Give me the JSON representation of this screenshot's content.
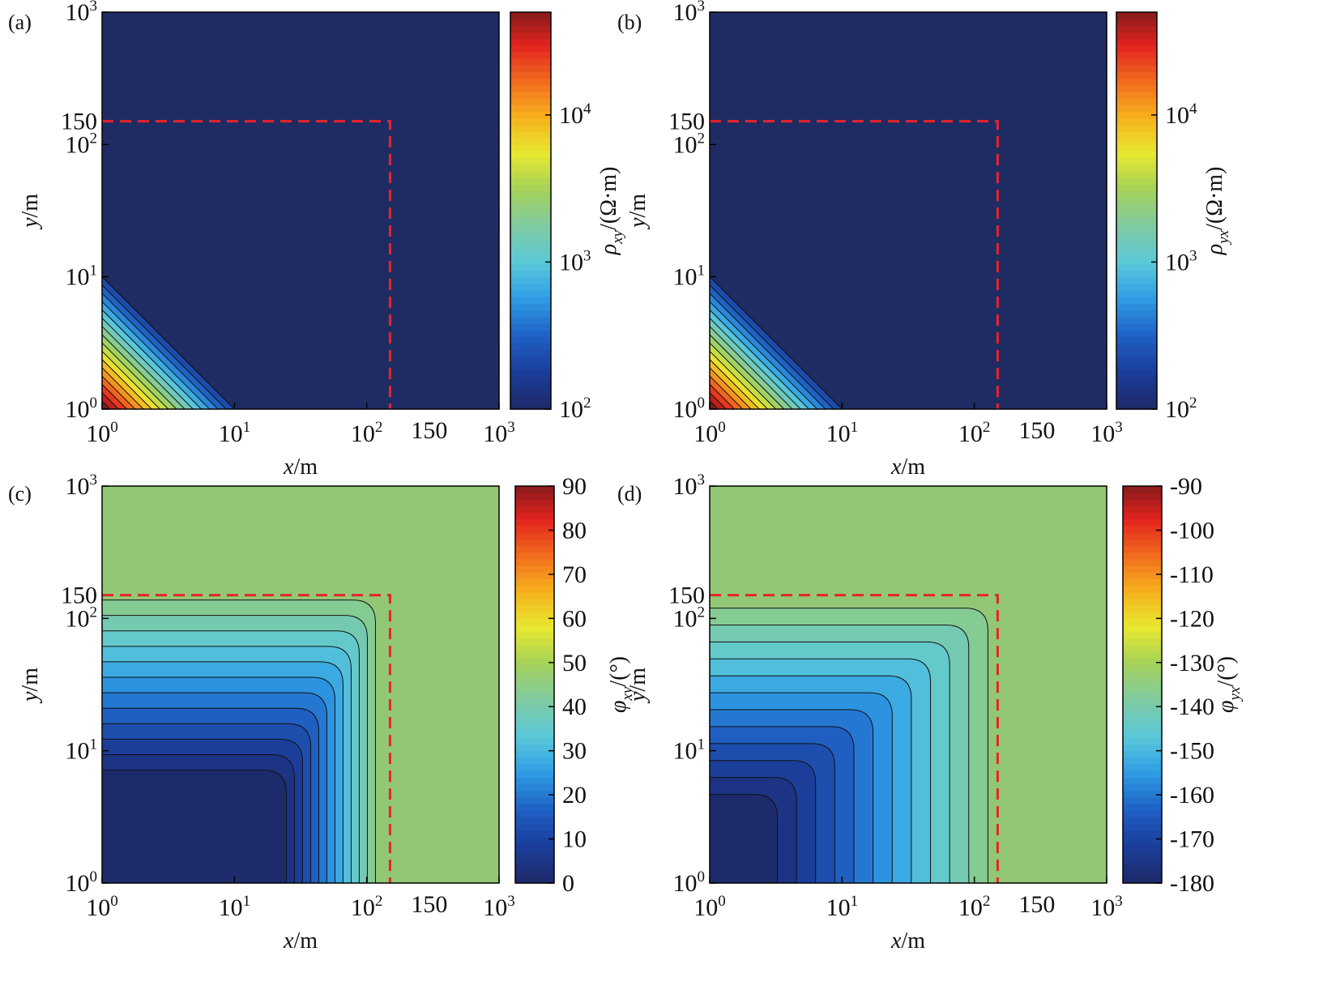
{
  "figure_type": "contour maps (log-log axes)",
  "shared": {
    "x_ticks": [
      "10",
      "10",
      "10",
      "10"
    ],
    "x_tick_exps": [
      "0",
      "1",
      "2",
      "3"
    ],
    "y_ticks": [
      "10",
      "10",
      "10",
      "10"
    ],
    "y_tick_exps": [
      "0",
      "1",
      "2",
      "3"
    ],
    "marker_label": "150",
    "xlabel_var": "x",
    "xlabel_unit": "/m",
    "ylabel_var": "y",
    "ylabel_unit": "/m"
  },
  "chart_data": [
    {
      "type": "heatmap",
      "panel": "(a)",
      "quantity": "apparent resistivity ρxy",
      "x_range": [
        1,
        1000
      ],
      "y_range": [
        1,
        1000
      ],
      "scale": "log-log",
      "boundary_x": 150,
      "boundary_y": 150,
      "background_value": 100,
      "anomaly": "high-resistivity wedge near origin, bounded by x·y ≈ 10",
      "colorbar": {
        "scale": "log",
        "range": [
          100,
          50000
        ],
        "ticks": [
          "10",
          "10",
          "10"
        ],
        "tick_exps": [
          "2",
          "3",
          "4"
        ],
        "tick_values": [
          100,
          1000,
          10000
        ]
      },
      "colorbar_label_main": "ρ",
      "colorbar_label_sub": "xy",
      "colorbar_label_unit": "/(Ω·m)"
    },
    {
      "type": "heatmap",
      "panel": "(b)",
      "quantity": "apparent resistivity ρyx",
      "x_range": [
        1,
        1000
      ],
      "y_range": [
        1,
        1000
      ],
      "scale": "log-log",
      "boundary_x": 150,
      "boundary_y": 150,
      "background_value": 100,
      "anomaly": "high-resistivity wedge near origin, bounded by x·y ≈ 10",
      "colorbar": {
        "scale": "log",
        "range": [
          100,
          50000
        ],
        "ticks": [
          "10",
          "10",
          "10"
        ],
        "tick_exps": [
          "2",
          "3",
          "4"
        ],
        "tick_values": [
          100,
          1000,
          10000
        ]
      },
      "colorbar_label_main": "ρ",
      "colorbar_label_sub": "yx",
      "colorbar_label_unit": "/(Ω·m)"
    },
    {
      "type": "heatmap",
      "panel": "(c)",
      "quantity": "phase φxy",
      "x_range": [
        1,
        1000
      ],
      "y_range": [
        1,
        1000
      ],
      "scale": "log-log",
      "boundary_x": 150,
      "boundary_y": 150,
      "background_value": 45,
      "colorbar": {
        "scale": "linear",
        "range": [
          0,
          90
        ],
        "ticks": [
          "90",
          "80",
          "70",
          "60",
          "50",
          "40",
          "30",
          "20",
          "10",
          "0"
        ],
        "tick_values": [
          90,
          80,
          70,
          60,
          50,
          40,
          30,
          20,
          10,
          0
        ]
      },
      "colorbar_label_main": "φ",
      "colorbar_label_sub": "xy",
      "colorbar_label_unit": "/(°)"
    },
    {
      "type": "heatmap",
      "panel": "(d)",
      "quantity": "phase φyx",
      "x_range": [
        1,
        1000
      ],
      "y_range": [
        1,
        1000
      ],
      "scale": "log-log",
      "boundary_x": 150,
      "boundary_y": 150,
      "background_value": -135,
      "colorbar": {
        "scale": "linear",
        "range": [
          -180,
          -90
        ],
        "ticks": [
          "-90",
          "-100",
          "-110",
          "-120",
          "-130",
          "-140",
          "-150",
          "-160",
          "-170",
          "-180"
        ],
        "tick_values": [
          -90,
          -100,
          -110,
          -120,
          -130,
          -140,
          -150,
          -160,
          -170,
          -180
        ]
      },
      "colorbar_label_main": "φ",
      "colorbar_label_sub": "yx",
      "colorbar_label_unit": "/(°)"
    }
  ],
  "colors": {
    "background_resistivity": "#1f2c63",
    "background_phase": "#92c776",
    "boundary_line": "#e8232b",
    "contour_line": "#111111",
    "colormap": [
      "#1d2a6b",
      "#1b3f9e",
      "#1f63c6",
      "#2f9ee6",
      "#5cc9d8",
      "#7fcaa0",
      "#a5d25a",
      "#e7e830",
      "#f6b11d",
      "#f26b1d",
      "#e2231f",
      "#7d1a1a"
    ]
  }
}
